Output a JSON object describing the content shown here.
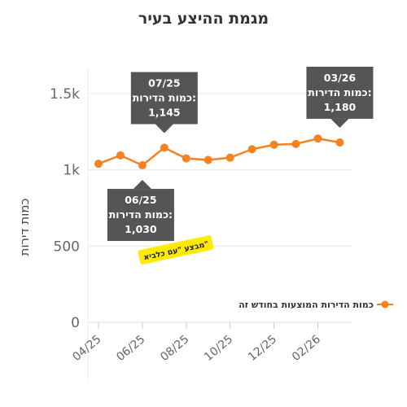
{
  "chart_data": {
    "type": "line",
    "title": "מגמת ההיצע בעיר",
    "ylabel": "כמות דירות",
    "xlabel": "",
    "ylim": [
      0,
      1600
    ],
    "yticks": [
      {
        "value": 0,
        "label": "0"
      },
      {
        "value": 500,
        "label": "500"
      },
      {
        "value": 1000,
        "label": "1k"
      },
      {
        "value": 1500,
        "label": "1.5k"
      }
    ],
    "x": [
      "04/25",
      "05/25",
      "06/25",
      "07/25",
      "08/25",
      "09/25",
      "10/25",
      "11/25",
      "12/25",
      "01/26",
      "02/26",
      "03/26"
    ],
    "x_tick_labels": [
      "04/25",
      "06/25",
      "08/25",
      "10/25",
      "12/25",
      "02/26"
    ],
    "series": [
      {
        "name": "כמות הדירות המוצעות בחודש זה",
        "color": "#f58220",
        "values": [
          1040,
          1095,
          1030,
          1145,
          1075,
          1065,
          1080,
          1135,
          1165,
          1170,
          1205,
          1180
        ]
      }
    ],
    "legend_position": "right",
    "grid": true,
    "annotations": [
      {
        "x": "07/25",
        "lines": [
          "07/25",
          "כמות הדירות:",
          "1,145"
        ],
        "placement": "above"
      },
      {
        "x": "03/26",
        "lines": [
          "03/26",
          "כמות הדירות:",
          "1,180"
        ],
        "placement": "above"
      },
      {
        "x": "06/25",
        "lines": [
          "06/25",
          "כמות הדירות:",
          "1,030"
        ],
        "placement": "below"
      }
    ],
    "stamp": {
      "text": "מבצע \"עם כלביא\"",
      "color": "#ffea00"
    }
  }
}
